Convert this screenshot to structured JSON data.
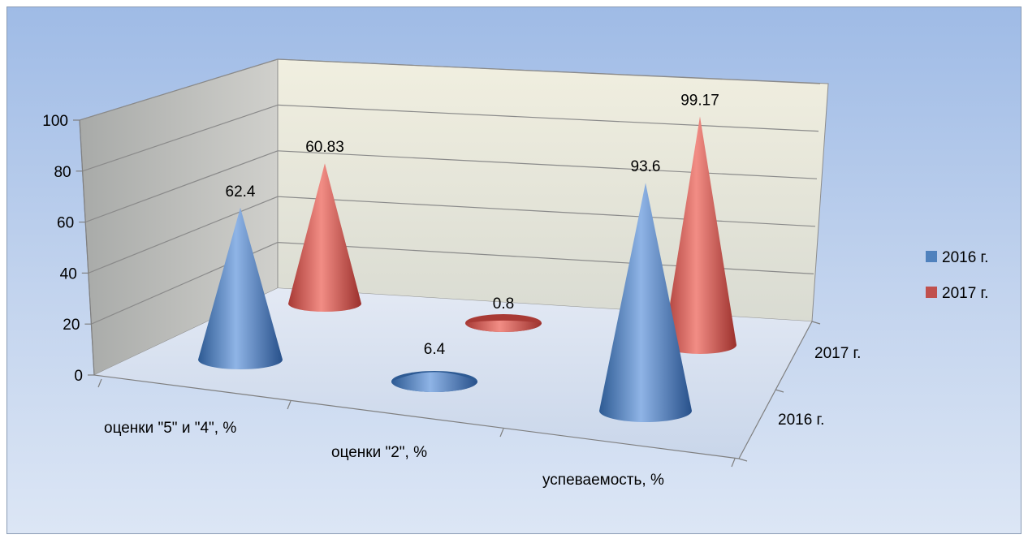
{
  "chart_data": {
    "type": "bar",
    "shape": "3d-cone",
    "categories": [
      "оценки \"5\" и \"4\", %",
      "оценки \"2\", %",
      "успеваемость, %"
    ],
    "series": [
      {
        "name": "2016 г.",
        "values": [
          62.4,
          6.4,
          93.6
        ],
        "color": "#4f81bd"
      },
      {
        "name": "2017 г.",
        "values": [
          60.83,
          0.8,
          99.17
        ],
        "color": "#c0504d"
      }
    ],
    "depth_labels": [
      "2016 г.",
      "2017 г."
    ],
    "data_labels": [
      "62.4",
      "6.4",
      "93.6",
      "60.83",
      "0.8",
      "99.17"
    ],
    "yticks": [
      "0",
      "20",
      "40",
      "60",
      "80",
      "100"
    ],
    "ylim": [
      0,
      100
    ],
    "grid": true,
    "legend": "right"
  }
}
